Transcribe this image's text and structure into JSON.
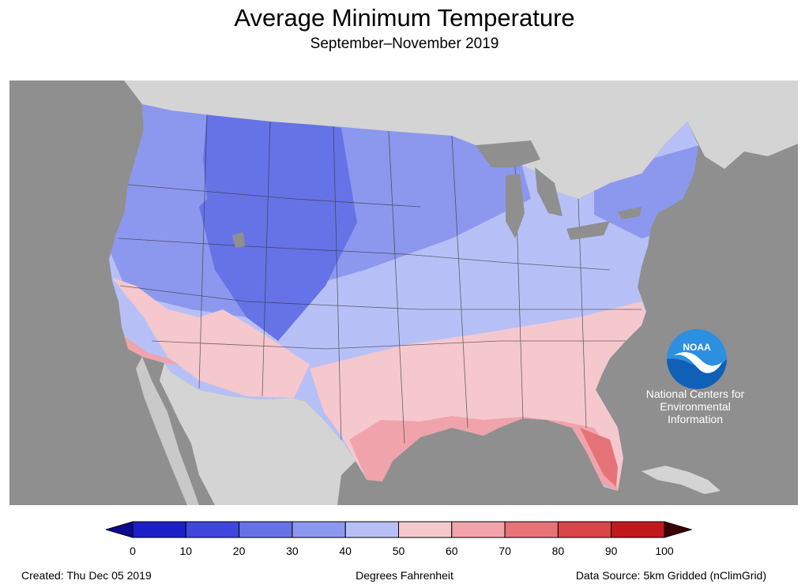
{
  "title": "Average Minimum Temperature",
  "subtitle": "September–November 2019",
  "logo": {
    "badge_text": "NOAA",
    "org_line1": "National Centers for",
    "org_line2": "Environmental",
    "org_line3": "Information"
  },
  "legend": {
    "units": "Degrees Fahrenheit",
    "ticks": [
      "0",
      "10",
      "20",
      "30",
      "40",
      "50",
      "60",
      "70",
      "80",
      "90",
      "100"
    ],
    "colors": [
      "#1c1fc8",
      "#3f48dd",
      "#6673e6",
      "#8c98ee",
      "#b7c0f6",
      "#f5c8ce",
      "#f0a3aa",
      "#e67378",
      "#d94548",
      "#c4191c"
    ],
    "low_arrow_color": "#0b0b8c",
    "high_arrow_color": "#3b0000"
  },
  "footer": {
    "created": "Created: Thu Dec 05 2019",
    "source": "Data Source: 5km Gridded (nClimGrid)"
  },
  "map_colors": {
    "ocean": "#8f8f8f",
    "land_outside": "#d4d4d4"
  }
}
